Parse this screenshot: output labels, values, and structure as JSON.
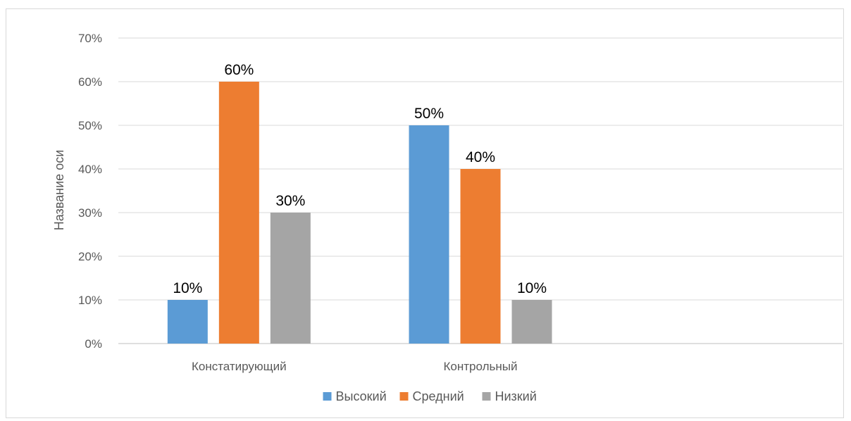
{
  "chart_data": {
    "type": "bar",
    "title": "",
    "xlabel": "",
    "ylabel": "Название оси",
    "categories": [
      "Констатирующий",
      "Контрольный",
      ""
    ],
    "series": [
      {
        "name": "Высокий",
        "values": [
          10,
          50,
          null
        ],
        "color": "#5b9bd5"
      },
      {
        "name": "Средний",
        "values": [
          60,
          40,
          null
        ],
        "color": "#ed7d31"
      },
      {
        "name": "Низкий",
        "values": [
          30,
          10,
          null
        ],
        "color": "#a5a5a5"
      }
    ],
    "data_labels": [
      [
        "10%",
        "50%",
        ""
      ],
      [
        "60%",
        "40%",
        ""
      ],
      [
        "30%",
        "10%",
        ""
      ]
    ],
    "ylim": [
      0,
      70
    ],
    "yticks": [
      0,
      10,
      20,
      30,
      40,
      50,
      60,
      70
    ],
    "ytick_labels": [
      "0%",
      "10%",
      "20%",
      "30%",
      "40%",
      "50%",
      "60%",
      "70%"
    ],
    "grid": true,
    "legend_position": "bottom",
    "colors": {
      "grid": "#d9d9d9",
      "axis": "#bfbfbf",
      "text": "#595959",
      "label": "#000000"
    }
  }
}
